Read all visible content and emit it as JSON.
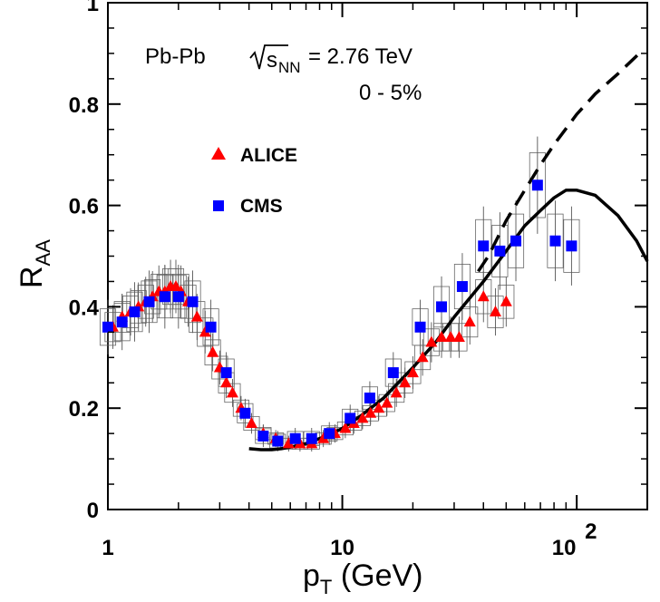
{
  "chart_data": {
    "type": "scatter",
    "x_scale": "log",
    "xlim": [
      1,
      200
    ],
    "ylim": [
      0,
      1.0
    ],
    "xlabel": {
      "base": "p",
      "sub": "T",
      "rest": " (GeV)"
    },
    "ylabel": {
      "base": "R",
      "sub": "AA"
    },
    "x_ticks": [
      {
        "value": 1,
        "label": "1"
      },
      {
        "value": 10,
        "label": "10"
      },
      {
        "value": 100,
        "base": "10",
        "exp": "2"
      }
    ],
    "y_ticks": [
      {
        "value": 0,
        "label": "0"
      },
      {
        "value": 0.2,
        "label": "0.2"
      },
      {
        "value": 0.4,
        "label": "0.4"
      },
      {
        "value": 0.6,
        "label": "0.6"
      },
      {
        "value": 0.8,
        "label": "0.8"
      },
      {
        "value": 1.0,
        "label": "1"
      }
    ],
    "annotations": {
      "system": "Pb-Pb",
      "energy_sqrt": "s",
      "energy_sub": "NN",
      "energy_value": " = 2.76 TeV",
      "centrality": "0 - 5%"
    },
    "legend_position": "upper-left",
    "series": [
      {
        "name": "ALICE",
        "marker": "triangle",
        "color": "#ff0000",
        "x": [
          1.05,
          1.15,
          1.25,
          1.35,
          1.45,
          1.55,
          1.65,
          1.75,
          1.85,
          1.95,
          2.05,
          2.2,
          2.4,
          2.6,
          2.8,
          3.0,
          3.2,
          3.4,
          3.7,
          4.1,
          4.6,
          5.2,
          5.9,
          6.6,
          7.4,
          8.3,
          9.3,
          10.3,
          11.2,
          12.2,
          13.2,
          14.3,
          15.5,
          17.0,
          18.5,
          20.0,
          22.0,
          24.0,
          26.5,
          29.0,
          31.5,
          35.0,
          40.0,
          45.0,
          50.0
        ],
        "y": [
          0.36,
          0.38,
          0.39,
          0.4,
          0.41,
          0.42,
          0.43,
          0.43,
          0.44,
          0.44,
          0.43,
          0.41,
          0.38,
          0.35,
          0.31,
          0.28,
          0.25,
          0.23,
          0.2,
          0.17,
          0.15,
          0.14,
          0.13,
          0.13,
          0.13,
          0.14,
          0.15,
          0.16,
          0.17,
          0.18,
          0.19,
          0.2,
          0.21,
          0.23,
          0.25,
          0.27,
          0.3,
          0.33,
          0.34,
          0.34,
          0.34,
          0.37,
          0.42,
          0.39,
          0.41
        ]
      },
      {
        "name": "CMS",
        "marker": "square",
        "color": "#0000ff",
        "x": [
          1.0,
          1.15,
          1.3,
          1.5,
          1.75,
          2.0,
          2.3,
          2.75,
          3.2,
          3.85,
          4.6,
          5.3,
          6.3,
          7.4,
          8.8,
          10.8,
          13.1,
          16.5,
          21.5,
          26.5,
          32.5,
          40.0,
          47.0,
          55.0,
          68.0,
          81.0,
          95.0
        ],
        "y": [
          0.36,
          0.37,
          0.39,
          0.41,
          0.42,
          0.42,
          0.41,
          0.36,
          0.27,
          0.19,
          0.145,
          0.135,
          0.14,
          0.14,
          0.15,
          0.18,
          0.22,
          0.27,
          0.36,
          0.4,
          0.44,
          0.52,
          0.51,
          0.53,
          0.64,
          0.53,
          0.52
        ]
      },
      {
        "name": "",
        "style": "solid-line",
        "color": "#000000",
        "x": [
          4.0,
          4.5,
          5.0,
          5.5,
          6.0,
          7.0,
          8.0,
          9.0,
          10.0,
          12.0,
          15.0,
          20.0,
          25.0,
          30.0,
          40.0,
          50.0,
          60.0,
          70.0,
          80.0,
          90.0,
          100.0,
          120.0,
          150.0,
          180.0,
          200.0
        ],
        "y": [
          0.12,
          0.118,
          0.118,
          0.12,
          0.123,
          0.13,
          0.14,
          0.15,
          0.16,
          0.185,
          0.22,
          0.28,
          0.33,
          0.38,
          0.45,
          0.51,
          0.56,
          0.59,
          0.615,
          0.63,
          0.63,
          0.62,
          0.58,
          0.53,
          0.49
        ]
      },
      {
        "name": "",
        "style": "dashed-line",
        "color": "#000000",
        "x": [
          38.0,
          42.0,
          50.0,
          60.0,
          70.0,
          80.0,
          100.0,
          120.0,
          150.0,
          185.0
        ],
        "y": [
          0.47,
          0.5,
          0.57,
          0.63,
          0.68,
          0.72,
          0.78,
          0.82,
          0.86,
          0.9
        ]
      }
    ]
  }
}
